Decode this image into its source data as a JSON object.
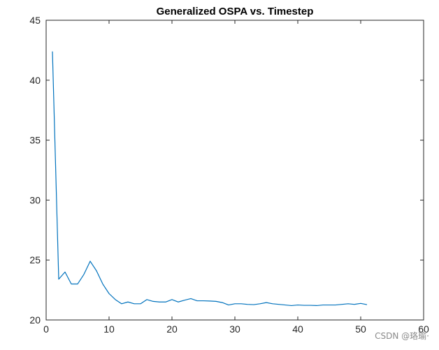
{
  "chart_data": {
    "type": "line",
    "title": "Generalized OSPA vs. Timestep",
    "xlabel": "",
    "ylabel": "",
    "xlim": [
      0,
      60
    ],
    "ylim": [
      20,
      45
    ],
    "xticks": [
      0,
      10,
      20,
      30,
      40,
      50,
      60
    ],
    "yticks": [
      20,
      25,
      30,
      35,
      40,
      45
    ],
    "grid": false,
    "series": [
      {
        "color": "#0072bd",
        "x": [
          1,
          2,
          3,
          4,
          5,
          6,
          7,
          8,
          9,
          10,
          11,
          12,
          13,
          14,
          15,
          16,
          17,
          18,
          19,
          20,
          21,
          22,
          23,
          24,
          25,
          26,
          27,
          28,
          29,
          30,
          31,
          32,
          33,
          34,
          35,
          36,
          37,
          38,
          39,
          40,
          41,
          42,
          43,
          44,
          45,
          46,
          47,
          48,
          49,
          50,
          51
        ],
        "y": [
          42.4,
          23.4,
          24.0,
          23.0,
          23.0,
          23.8,
          24.9,
          24.1,
          23.0,
          22.2,
          21.7,
          21.35,
          21.5,
          21.35,
          21.35,
          21.7,
          21.55,
          21.5,
          21.5,
          21.7,
          21.5,
          21.65,
          21.78,
          21.6,
          21.6,
          21.58,
          21.55,
          21.45,
          21.25,
          21.35,
          21.35,
          21.3,
          21.28,
          21.35,
          21.45,
          21.35,
          21.3,
          21.25,
          21.2,
          21.25,
          21.22,
          21.22,
          21.2,
          21.25,
          21.25,
          21.25,
          21.3,
          21.35,
          21.3,
          21.38,
          21.28
        ]
      }
    ]
  },
  "watermark": "CSDN @珞瑜·"
}
